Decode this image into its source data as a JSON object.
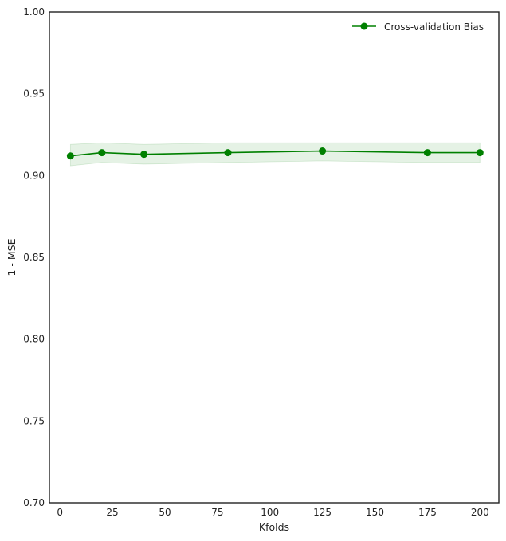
{
  "chart_data": {
    "type": "line",
    "xlabel": "Kfolds",
    "ylabel": "1 - MSE",
    "xlim": [
      -5,
      209
    ],
    "ylim": [
      0.7,
      1.0
    ],
    "x_ticks": [
      0,
      25,
      50,
      75,
      100,
      125,
      150,
      175,
      200
    ],
    "x_tick_labels": [
      "0",
      "25",
      "50",
      "75",
      "100",
      "125",
      "150",
      "175",
      "200"
    ],
    "y_ticks": [
      0.7,
      0.75,
      0.8,
      0.85,
      0.9,
      0.95,
      1.0
    ],
    "y_tick_labels": [
      "0.70",
      "0.75",
      "0.80",
      "0.85",
      "0.90",
      "0.95",
      "1.00"
    ],
    "grid": false,
    "legend_position": "top-right",
    "series": [
      {
        "name": "Cross-validation Bias",
        "color": "#008000",
        "band_color": "#008000",
        "marker": "circle",
        "x": [
          5,
          20,
          40,
          80,
          125,
          175,
          200
        ],
        "y": [
          0.912,
          0.914,
          0.913,
          0.914,
          0.915,
          0.914,
          0.914
        ],
        "upper": [
          0.919,
          0.92,
          0.919,
          0.92,
          0.92,
          0.92,
          0.92
        ],
        "lower": [
          0.906,
          0.908,
          0.907,
          0.908,
          0.909,
          0.908,
          0.908
        ]
      }
    ]
  }
}
